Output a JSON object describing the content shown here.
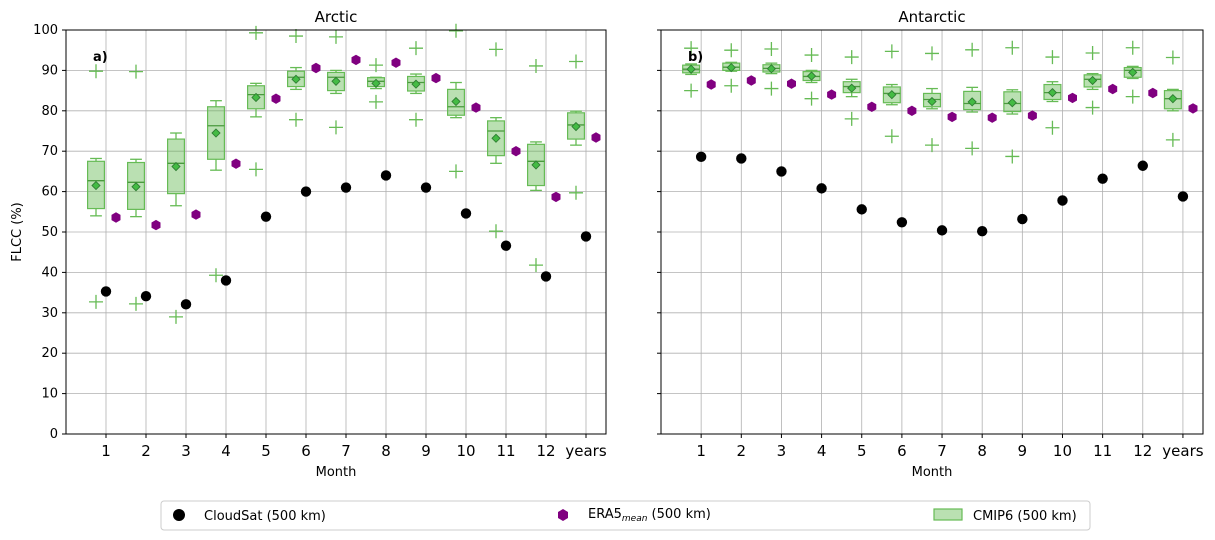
{
  "chart_data": {
    "type": "scatter",
    "ylabel": "FLCC (%)",
    "xlabel": "Month",
    "ylim": [
      0,
      100
    ],
    "yticks": [
      0,
      10,
      20,
      30,
      40,
      50,
      60,
      70,
      80,
      90,
      100
    ],
    "categories": [
      "1",
      "2",
      "3",
      "4",
      "5",
      "6",
      "7",
      "8",
      "9",
      "10",
      "11",
      "12",
      "years"
    ],
    "grid": true,
    "legend": {
      "placement": "bottom",
      "entries": [
        {
          "label": "CloudSat (500 km)",
          "color": "#000000",
          "marker": "circle"
        },
        {
          "label_main": "ERA5",
          "label_sub": "mean",
          "label_tail": " (500 km)",
          "color": "#800080",
          "marker": "hexagon"
        },
        {
          "label": "CMIP6 (500 km)",
          "color": "#66bb55",
          "marker": "box"
        }
      ]
    },
    "panels": [
      {
        "title": "Arctic",
        "panel_label": "a)",
        "cloudsat": [
          35.3,
          34.1,
          32.1,
          38.0,
          53.8,
          60.0,
          61.0,
          64.0,
          61.0,
          54.6,
          46.6,
          39.0,
          48.9
        ],
        "era5_mean": [
          53.6,
          51.7,
          54.3,
          66.9,
          83.0,
          90.6,
          92.6,
          91.9,
          88.1,
          80.8,
          70.0,
          58.7,
          73.4
        ],
        "cmip6": {
          "median": [
            62.7,
            62.3,
            67.0,
            76.3,
            84.0,
            88.3,
            88.3,
            87.3,
            87.0,
            81.0,
            75.0,
            67.5,
            76.5
          ],
          "mean": [
            61.5,
            61.2,
            66.2,
            74.5,
            83.3,
            87.8,
            87.3,
            86.8,
            86.6,
            82.3,
            73.2,
            66.6,
            76.1
          ],
          "q1": [
            55.8,
            55.6,
            59.5,
            68.0,
            80.5,
            86.0,
            85.0,
            86.0,
            84.9,
            78.9,
            68.9,
            61.5,
            73.0
          ],
          "q3": [
            67.5,
            67.2,
            73.0,
            81.0,
            86.2,
            89.8,
            89.5,
            88.2,
            88.5,
            85.3,
            77.5,
            71.7,
            79.5
          ],
          "whisker_low": [
            54.0,
            53.8,
            56.5,
            65.3,
            78.5,
            85.3,
            84.3,
            85.5,
            84.3,
            78.3,
            67.0,
            60.3,
            71.5
          ],
          "whisker_high": [
            68.2,
            68.0,
            74.5,
            82.5,
            86.8,
            90.7,
            90.0,
            88.3,
            89.1,
            87.0,
            78.3,
            72.3,
            79.9
          ],
          "outliers": [
            [
              32.7,
              89.8
            ],
            [
              32.2,
              89.7
            ],
            [
              29.0
            ],
            [
              39.3
            ],
            [
              65.5,
              99.3
            ],
            [
              77.8,
              98.5
            ],
            [
              75.9,
              98.3
            ],
            [
              82.2,
              91.3
            ],
            [
              77.8,
              95.5
            ],
            [
              65.0,
              99.8
            ],
            [
              50.2,
              95.2
            ],
            [
              41.8,
              91.1
            ],
            [
              59.7,
              92.2
            ]
          ]
        }
      },
      {
        "title": "Antarctic",
        "panel_label": "b)",
        "cloudsat": [
          68.6,
          68.2,
          65.0,
          60.8,
          55.6,
          52.4,
          50.4,
          50.2,
          53.2,
          57.8,
          63.2,
          66.4,
          58.8
        ],
        "era5_mean": [
          86.5,
          87.5,
          86.7,
          84.0,
          81.0,
          80.0,
          78.5,
          78.3,
          78.8,
          83.2,
          85.4,
          84.4,
          80.6
        ],
        "cmip6": {
          "median": [
            90.3,
            90.8,
            90.5,
            88.5,
            86.0,
            84.3,
            82.8,
            81.8,
            81.8,
            84.5,
            87.8,
            90.0,
            83.0
          ],
          "mean": [
            90.3,
            90.7,
            90.4,
            88.6,
            85.6,
            84.0,
            82.3,
            82.2,
            82.0,
            84.5,
            87.5,
            89.5,
            83.0
          ],
          "q1": [
            89.4,
            90.0,
            89.6,
            87.5,
            84.5,
            82.0,
            81.0,
            80.3,
            79.8,
            82.8,
            85.9,
            88.3,
            80.5
          ],
          "q3": [
            91.3,
            91.8,
            91.4,
            89.7,
            87.2,
            85.9,
            84.3,
            84.8,
            84.7,
            86.5,
            88.9,
            90.7,
            85.0
          ],
          "whisker_low": [
            89.0,
            89.8,
            89.2,
            87.0,
            83.5,
            81.5,
            80.5,
            79.7,
            79.2,
            82.3,
            85.3,
            88.0,
            80.0
          ],
          "whisker_high": [
            91.6,
            92.0,
            91.8,
            90.0,
            87.8,
            86.5,
            85.5,
            85.8,
            85.2,
            87.2,
            89.2,
            91.0,
            85.3
          ],
          "outliers": [
            [
              85.0,
              95.5
            ],
            [
              86.2,
              95.0
            ],
            [
              85.5,
              95.3
            ],
            [
              83.0,
              93.8
            ],
            [
              78.0,
              93.3
            ],
            [
              73.7,
              94.7
            ],
            [
              71.5,
              94.2
            ],
            [
              70.7,
              95.1
            ],
            [
              68.7,
              95.6
            ],
            [
              75.8,
              93.3
            ],
            [
              80.8,
              94.3
            ],
            [
              83.5,
              95.6
            ],
            [
              72.8,
              93.2
            ]
          ]
        }
      }
    ]
  }
}
